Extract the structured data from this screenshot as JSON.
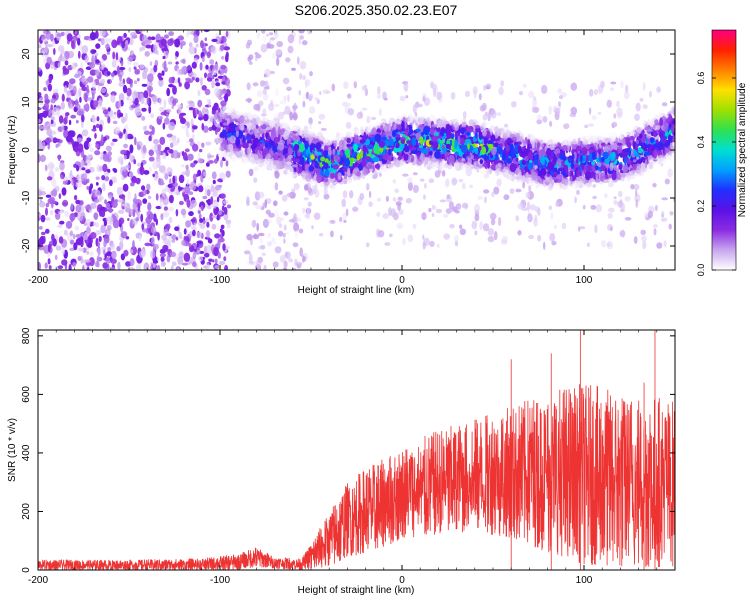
{
  "title": "S206.2025.350.02.23.E07",
  "chart_data": [
    {
      "type": "heatmap",
      "name": "spectrogram",
      "xlabel": "Height of straight line (km)",
      "ylabel": "Frequency (Hz)",
      "xlim": [
        -200,
        150
      ],
      "ylim": [
        -25,
        25
      ],
      "xticks": [
        -200,
        -100,
        0,
        100
      ],
      "yticks": [
        -20,
        -10,
        0,
        10,
        20
      ],
      "grid": false,
      "colorbar": {
        "label": "Normalized spectral amplitude",
        "range": [
          0,
          0.75
        ],
        "ticks": [
          0.0,
          0.2,
          0.4,
          0.6
        ],
        "colormap": [
          "#ffffff",
          "#c8a6ef",
          "#8a2be2",
          "#5a12e6",
          "#2030ff",
          "#00a0ff",
          "#00e0d0",
          "#30e050",
          "#a0e000",
          "#ffe000",
          "#ff8000",
          "#ff2000",
          "#ff0080"
        ]
      },
      "features": [
        {
          "label": "broadband noise",
          "x_range": [
            -200,
            -95
          ],
          "freq_range": [
            -25,
            25
          ],
          "amplitude": 0.1
        },
        {
          "label": "noise column",
          "x_range": [
            -85,
            -50
          ],
          "freq_range": [
            -25,
            25
          ],
          "amplitude": 0.05
        },
        {
          "label": "signal band",
          "x_range": [
            -100,
            150
          ],
          "center_freq": [
            [
              -100,
              4
            ],
            [
              -60,
              0
            ],
            [
              -40,
              -3
            ],
            [
              0,
              2
            ],
            [
              40,
              1
            ],
            [
              80,
              -3
            ],
            [
              120,
              -2
            ],
            [
              150,
              4
            ]
          ],
          "half_width_hz": 5,
          "peak_amplitude": 0.7
        }
      ]
    },
    {
      "type": "line",
      "name": "snr",
      "xlabel": "Height of straight line (km)",
      "ylabel": "SNR (10 * v/v)",
      "xlim": [
        -200,
        150
      ],
      "ylim": [
        0,
        820
      ],
      "xticks": [
        -200,
        -100,
        0,
        100
      ],
      "yticks": [
        0,
        200,
        400,
        600,
        800
      ],
      "line_color": "#ee3333",
      "series": [
        {
          "name": "SNR",
          "x": [
            -200,
            -150,
            -110,
            -90,
            -80,
            -70,
            -55,
            -40,
            -30,
            -20,
            -10,
            0,
            20,
            40,
            60,
            80,
            100,
            120,
            140,
            150
          ],
          "upper": [
            35,
            35,
            40,
            55,
            80,
            45,
            40,
            200,
            300,
            350,
            380,
            420,
            480,
            520,
            560,
            620,
            640,
            610,
            600,
            580
          ],
          "lower": [
            0,
            0,
            0,
            0,
            10,
            5,
            0,
            10,
            40,
            60,
            80,
            100,
            120,
            130,
            110,
            60,
            20,
            10,
            10,
            10
          ],
          "peaks": [
            [
              60,
              720
            ],
            [
              82,
              740
            ],
            [
              98,
              818
            ],
            [
              133,
              640
            ],
            [
              139,
              818
            ]
          ]
        }
      ]
    }
  ]
}
